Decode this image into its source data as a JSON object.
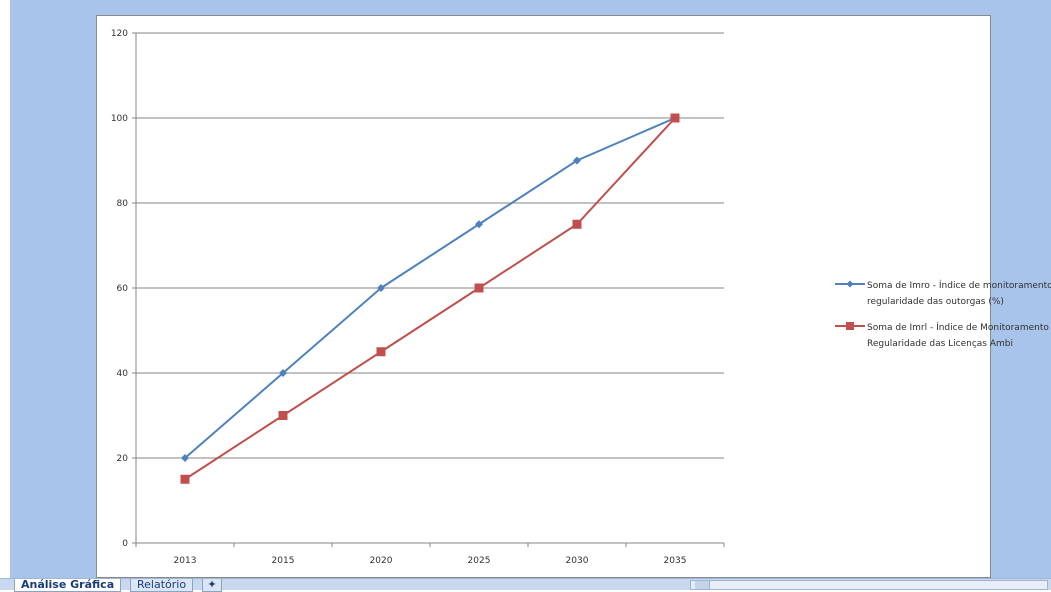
{
  "colors": {
    "pane_background": "#a9c4ea",
    "series_1": "#4f81bd",
    "series_2": "#c0504d",
    "gridline": "#868686"
  },
  "sheet_tabs": [
    {
      "label": "Análise Gráfica",
      "active": true
    },
    {
      "label": "Relatório",
      "active": false
    },
    {
      "label": "",
      "icon": "new-sheet-icon",
      "active": false
    }
  ],
  "chart_data": {
    "type": "line",
    "categories": [
      "2013",
      "2015",
      "2020",
      "2025",
      "2030",
      "2035"
    ],
    "series": [
      {
        "name": "Soma de Imro - Índice de monitoramento da regularidade das outorgas (%)",
        "legend_lines": [
          "Soma de Imro - Índice de monitoramento da",
          "regularidade das outorgas (%)"
        ],
        "marker": "diamond",
        "color": "#4f81bd",
        "values": [
          20,
          40,
          60,
          75,
          90,
          100
        ]
      },
      {
        "name": "Soma de Imrl - Índice de Monitoramento de Regularidade das Licenças Ambi",
        "legend_lines": [
          "Soma de Imrl - Índice de Monitoramento de",
          "Regularidade das Licenças Ambi"
        ],
        "marker": "square",
        "color": "#c0504d",
        "values": [
          15,
          30,
          45,
          60,
          75,
          100
        ]
      }
    ],
    "ylim": [
      0,
      120
    ],
    "yticks": [
      "0",
      "20",
      "40",
      "60",
      "80",
      "100",
      "120"
    ],
    "ytick_values": [
      0,
      20,
      40,
      60,
      80,
      100,
      120
    ],
    "grid": true,
    "legend_position": "right",
    "title": "",
    "xlabel": "",
    "ylabel": ""
  }
}
